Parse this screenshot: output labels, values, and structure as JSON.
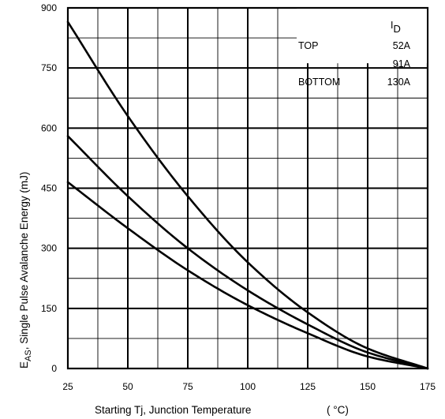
{
  "chart_data": {
    "type": "line",
    "x_axis": {
      "label": "Starting Tj, Junction Temperature",
      "unit": "( °C)",
      "min": 25,
      "max": 175,
      "ticks": [
        25,
        50,
        75,
        100,
        125,
        150,
        175
      ],
      "minor_step": 12.5
    },
    "y_axis": {
      "label_main": "E",
      "label_sub": "AS",
      "label_rest": ", Single Pulse Avalanche Energy (mJ)",
      "min": 0,
      "max": 900,
      "ticks": [
        0,
        150,
        300,
        450,
        600,
        750,
        900
      ],
      "minor_step": 75
    },
    "legend": {
      "header_main": "I",
      "header_sub": "D",
      "rows": [
        {
          "position": "TOP",
          "value": "52A"
        },
        {
          "position": "",
          "value": "91A"
        },
        {
          "position": "BOTTOM",
          "value": "130A"
        }
      ],
      "placement": "top-right"
    },
    "grid": true,
    "series": [
      {
        "name": "52A",
        "x": [
          25,
          50,
          75,
          100,
          125,
          150,
          175
        ],
        "y": [
          865,
          630,
          430,
          265,
          140,
          50,
          0
        ]
      },
      {
        "name": "91A",
        "x": [
          25,
          50,
          75,
          100,
          125,
          150,
          175
        ],
        "y": [
          580,
          430,
          300,
          195,
          110,
          40,
          0
        ]
      },
      {
        "name": "130A",
        "x": [
          25,
          50,
          75,
          100,
          125,
          150,
          175
        ],
        "y": [
          465,
          350,
          245,
          158,
          88,
          30,
          0
        ]
      }
    ]
  }
}
